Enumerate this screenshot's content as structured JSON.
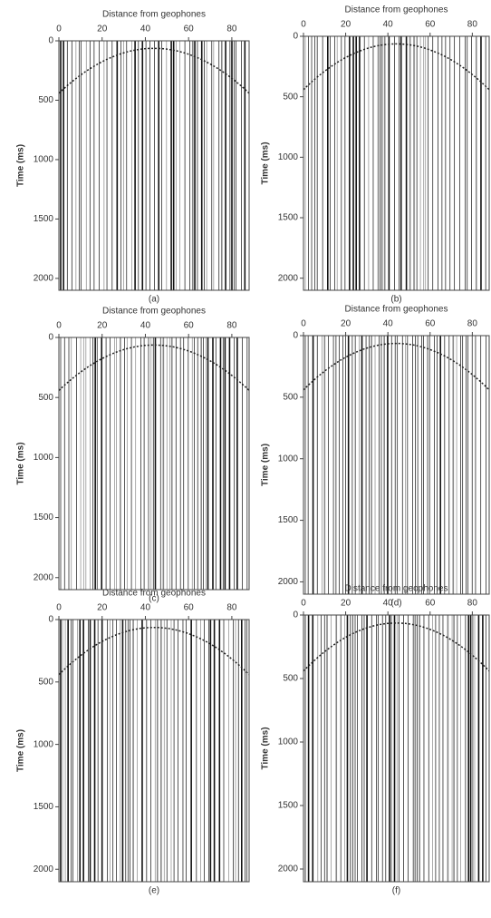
{
  "chart_data": [
    {
      "type": "seismic",
      "title": "Distance from geophones",
      "ylabel": "Time (ms)",
      "caption": "(a)",
      "xlim": [
        0,
        88
      ],
      "xticks": [
        0,
        20,
        40,
        60,
        80
      ],
      "ylim": [
        0,
        2100
      ],
      "yticks": [
        0,
        500,
        1000,
        1500,
        2000
      ]
    },
    {
      "type": "seismic",
      "title": "Distance from geophones",
      "ylabel": "Time (ms)",
      "caption": "(b)",
      "xlim": [
        0,
        88
      ],
      "xticks": [
        0,
        20,
        40,
        60,
        80
      ],
      "ylim": [
        0,
        2100
      ],
      "yticks": [
        0,
        500,
        1000,
        1500,
        2000
      ]
    },
    {
      "type": "seismic",
      "title": "Distance from geophones",
      "ylabel": "Time (ms)",
      "caption": "(c)",
      "xlim": [
        0,
        88
      ],
      "xticks": [
        0,
        20,
        40,
        60,
        80
      ],
      "ylim": [
        0,
        2100
      ],
      "yticks": [
        0,
        500,
        1000,
        1500,
        2000
      ]
    },
    {
      "type": "seismic",
      "title": "Distance from geophones",
      "ylabel": "Time (ms)",
      "caption": "(d)",
      "xlim": [
        0,
        88
      ],
      "xticks": [
        0,
        20,
        40,
        60,
        80
      ],
      "ylim": [
        0,
        2100
      ],
      "yticks": [
        0,
        500,
        1000,
        1500,
        2000
      ]
    },
    {
      "type": "seismic",
      "title": "Distance from geophones",
      "ylabel": "Time (ms)",
      "caption": "(e)",
      "xlim": [
        0,
        88
      ],
      "xticks": [
        0,
        20,
        40,
        60,
        80
      ],
      "ylim": [
        0,
        2100
      ],
      "yticks": [
        0,
        500,
        1000,
        1500,
        2000
      ]
    },
    {
      "type": "seismic",
      "title": "Distance from geophones",
      "ylabel": "Time (ms)",
      "caption": "(f)",
      "xlim": [
        0,
        88
      ],
      "xticks": [
        0,
        20,
        40,
        60,
        80
      ],
      "ylim": [
        0,
        2100
      ],
      "yticks": [
        0,
        500,
        1000,
        1500,
        2000
      ]
    }
  ]
}
